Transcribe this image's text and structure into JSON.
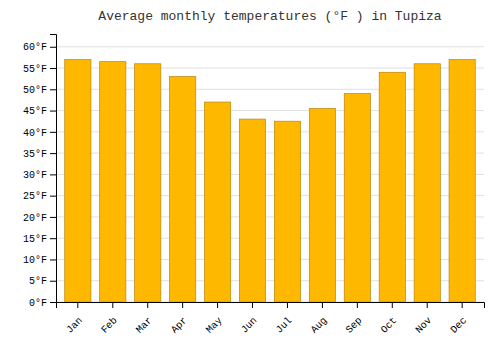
{
  "chart_data": {
    "type": "bar",
    "title": "Average monthly temperatures (°F ) in Tupiza",
    "categories": [
      "Jan",
      "Feb",
      "Mar",
      "Apr",
      "May",
      "Jun",
      "Jul",
      "Aug",
      "Sep",
      "Oct",
      "Nov",
      "Dec"
    ],
    "values": [
      57,
      56.5,
      56,
      53,
      47,
      43,
      42.5,
      45.5,
      49,
      54,
      56,
      57
    ],
    "color": "#FFB800",
    "ylim": [
      0,
      63
    ],
    "yticks": [
      {
        "value": 0,
        "label": "0°F"
      },
      {
        "value": 5,
        "label": "5°F"
      },
      {
        "value": 10,
        "label": "10°F"
      },
      {
        "value": 15,
        "label": "15°F"
      },
      {
        "value": 20,
        "label": "20°F"
      },
      {
        "value": 25,
        "label": "25°F"
      },
      {
        "value": 30,
        "label": "30°F"
      },
      {
        "value": 35,
        "label": "35°F"
      },
      {
        "value": 40,
        "label": "40°F"
      },
      {
        "value": 45,
        "label": "45°F"
      },
      {
        "value": 50,
        "label": "50°F"
      },
      {
        "value": 55,
        "label": "55°F"
      },
      {
        "value": 60,
        "label": "60°F"
      }
    ],
    "grid": true
  }
}
